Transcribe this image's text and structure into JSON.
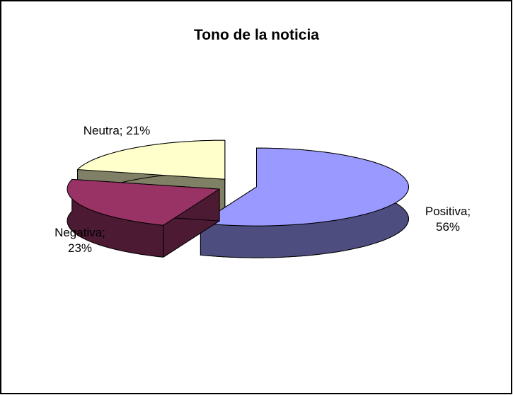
{
  "chart_data": {
    "type": "pie",
    "title": "Tono de la noticia",
    "categories": [
      "Positiva",
      "Negativa",
      "Neutra"
    ],
    "values": [
      56,
      23,
      21
    ],
    "value_labels": [
      "Positiva; 56%",
      "Negativa; 23%",
      "Neutra; 21%"
    ],
    "colors": [
      "#9999ff",
      "#993366",
      "#ffffcc"
    ]
  }
}
